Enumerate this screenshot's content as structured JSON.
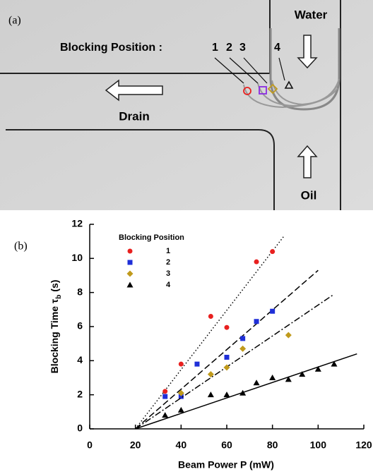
{
  "panel_a": {
    "label": "(a)",
    "water": "Water",
    "blocking": "Blocking Position :",
    "positions": [
      "1",
      "2",
      "3",
      "4"
    ],
    "drain": "Drain",
    "oil": "Oil"
  },
  "chart_data": {
    "type": "scatter",
    "panel_label": "(b)",
    "x_label": "Beam Power P (mW)",
    "y_label": {
      "main": "Blocking Time τ",
      "sub": "b",
      "unit": "(s)"
    },
    "legend_title": "Blocking Position",
    "xlim": [
      0,
      120
    ],
    "xticks": [
      0,
      20,
      40,
      60,
      80,
      100,
      120
    ],
    "ylim": [
      0,
      12
    ],
    "yticks": [
      0,
      2,
      4,
      6,
      8,
      10,
      12
    ],
    "series": [
      {
        "name": "1",
        "color": "#e8201f",
        "marker": "circle",
        "line_style": "dotted",
        "x": [
          33,
          40,
          53,
          60,
          73,
          80
        ],
        "values": [
          2.2,
          3.8,
          6.6,
          5.95,
          9.8,
          10.4
        ],
        "fit_x": [
          20,
          85
        ],
        "fit_y": [
          0,
          11.3
        ]
      },
      {
        "name": "2",
        "color": "#1f2fd8",
        "marker": "square",
        "line_style": "dashed",
        "x": [
          33,
          40,
          47,
          60,
          67,
          73,
          80
        ],
        "values": [
          1.9,
          1.9,
          3.8,
          4.2,
          5.3,
          6.3,
          6.9
        ],
        "fit_x": [
          20,
          100
        ],
        "fit_y": [
          0,
          9.3
        ]
      },
      {
        "name": "3",
        "color": "#c09a1c",
        "marker": "diamond",
        "line_style": "dashdot",
        "x": [
          40,
          53,
          60,
          67,
          87
        ],
        "values": [
          2.1,
          3.2,
          3.6,
          4.7,
          5.5
        ],
        "fit_x": [
          20,
          107
        ],
        "fit_y": [
          0,
          7.9
        ]
      },
      {
        "name": "4",
        "color": "#000000",
        "marker": "triangle",
        "line_style": "solid",
        "x": [
          33,
          40,
          53,
          60,
          67,
          73,
          80,
          87,
          93,
          100,
          107
        ],
        "values": [
          0.8,
          1.1,
          2.0,
          2.0,
          2.1,
          2.7,
          3.0,
          2.9,
          3.2,
          3.5,
          3.8
        ],
        "fit_x": [
          20,
          117
        ],
        "fit_y": [
          0,
          4.4
        ]
      }
    ]
  }
}
